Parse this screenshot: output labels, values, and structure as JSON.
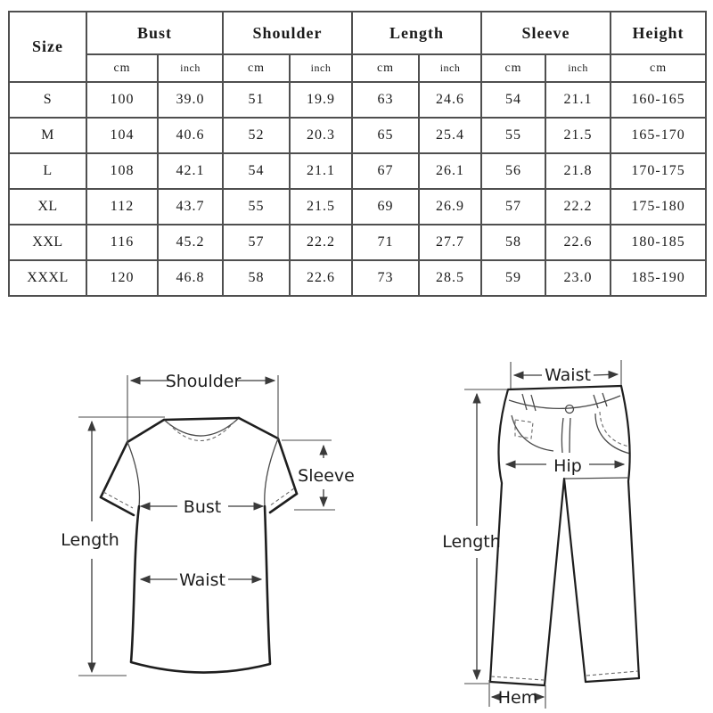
{
  "size_chart": {
    "corner_label": "Size",
    "groups": [
      {
        "label": "Bust",
        "subs": [
          "cm",
          "inch"
        ]
      },
      {
        "label": "Shoulder",
        "subs": [
          "cm",
          "inch"
        ]
      },
      {
        "label": "Length",
        "subs": [
          "cm",
          "inch"
        ]
      },
      {
        "label": "Sleeve",
        "subs": [
          "cm",
          "inch"
        ]
      },
      {
        "label": "Height",
        "subs": [
          "cm"
        ]
      }
    ],
    "rows": [
      {
        "size": "S",
        "values": [
          "100",
          "39.0",
          "51",
          "19.9",
          "63",
          "24.6",
          "54",
          "21.1",
          "160-165"
        ]
      },
      {
        "size": "M",
        "values": [
          "104",
          "40.6",
          "52",
          "20.3",
          "65",
          "25.4",
          "55",
          "21.5",
          "165-170"
        ]
      },
      {
        "size": "L",
        "values": [
          "108",
          "42.1",
          "54",
          "21.1",
          "67",
          "26.1",
          "56",
          "21.8",
          "170-175"
        ]
      },
      {
        "size": "XL",
        "values": [
          "112",
          "43.7",
          "55",
          "21.5",
          "69",
          "26.9",
          "57",
          "22.2",
          "175-180"
        ]
      },
      {
        "size": "XXL",
        "values": [
          "116",
          "45.2",
          "57",
          "22.2",
          "71",
          "27.7",
          "58",
          "22.6",
          "180-185"
        ]
      },
      {
        "size": "XXXL",
        "values": [
          "120",
          "46.8",
          "58",
          "22.6",
          "73",
          "28.5",
          "59",
          "23.0",
          "185-190"
        ]
      }
    ]
  },
  "shirt_diagram": {
    "labels": {
      "shoulder": "Shoulder",
      "sleeve": "Sleeve",
      "bust": "Bust",
      "waist": "Waist",
      "length": "Length"
    }
  },
  "pants_diagram": {
    "labels": {
      "waist": "Waist",
      "hip": "Hip",
      "length": "Length",
      "hem": "Hem"
    }
  },
  "colors": {
    "background": "#ffffff",
    "table_border": "#4f4f4f",
    "text": "#1a1a1a",
    "line": "#1e1e1e"
  }
}
